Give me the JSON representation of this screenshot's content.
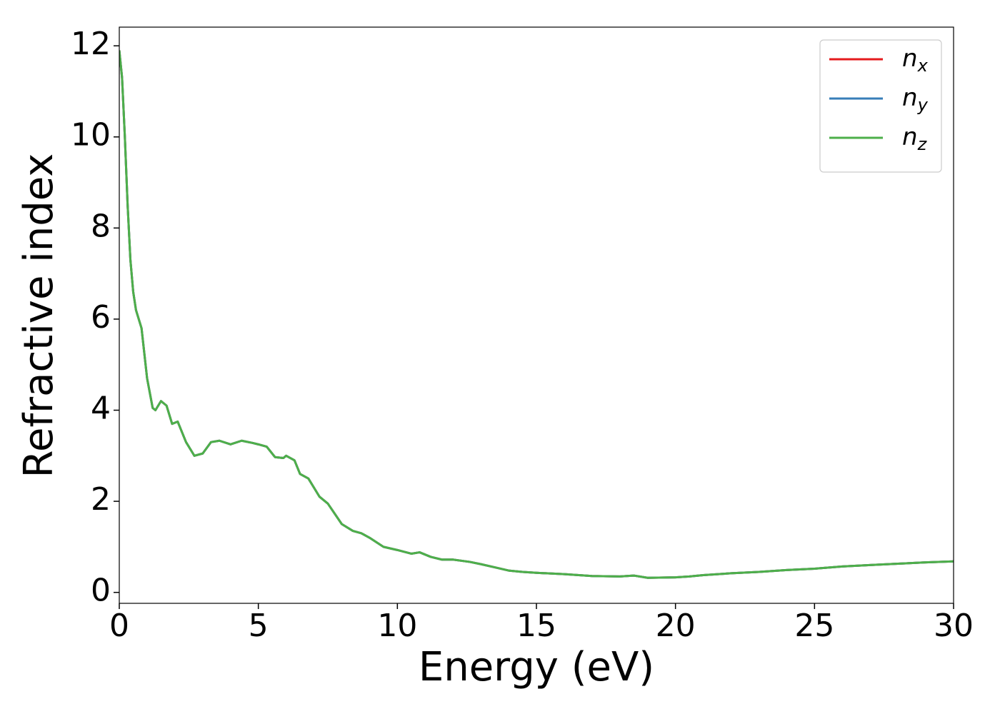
{
  "chart_data": {
    "type": "line",
    "xlabel": "Energy (eV)",
    "ylabel": "Refractive index",
    "x": [
      0,
      0.1,
      0.2,
      0.3,
      0.4,
      0.5,
      0.6,
      0.8,
      1.0,
      1.2,
      1.3,
      1.5,
      1.7,
      1.9,
      2.1,
      2.4,
      2.7,
      3.0,
      3.3,
      3.6,
      4.0,
      4.4,
      4.8,
      5.0,
      5.3,
      5.6,
      5.9,
      6.0,
      6.3,
      6.5,
      6.8,
      7.2,
      7.5,
      8.0,
      8.4,
      8.7,
      9.0,
      9.5,
      10.0,
      10.5,
      10.8,
      11.2,
      11.6,
      12.0,
      12.6,
      13.0,
      13.5,
      14.0,
      14.5,
      15.0,
      16.0,
      17.0,
      18.0,
      18.5,
      19.0,
      20.0,
      20.5,
      21.0,
      22.0,
      23.0,
      24.0,
      25.0,
      26.0,
      27.0,
      28.0,
      29.0,
      30.0
    ],
    "series": [
      {
        "name": "nx",
        "color": "#e41a1c",
        "values": [
          11.9,
          11.3,
          10.0,
          8.5,
          7.3,
          6.6,
          6.2,
          5.8,
          4.7,
          4.05,
          4.0,
          4.2,
          4.1,
          3.7,
          3.75,
          3.3,
          3.0,
          3.05,
          3.3,
          3.33,
          3.25,
          3.33,
          3.28,
          3.25,
          3.2,
          2.97,
          2.95,
          3.0,
          2.9,
          2.6,
          2.5,
          2.1,
          1.95,
          1.5,
          1.35,
          1.3,
          1.2,
          1.0,
          0.93,
          0.85,
          0.88,
          0.78,
          0.72,
          0.72,
          0.67,
          0.62,
          0.55,
          0.48,
          0.45,
          0.43,
          0.4,
          0.36,
          0.35,
          0.37,
          0.32,
          0.33,
          0.35,
          0.38,
          0.42,
          0.45,
          0.49,
          0.52,
          0.57,
          0.6,
          0.63,
          0.66,
          0.68
        ]
      },
      {
        "name": "ny",
        "color": "#377eb8",
        "values": [
          11.9,
          11.3,
          10.0,
          8.5,
          7.3,
          6.6,
          6.2,
          5.8,
          4.7,
          4.05,
          4.0,
          4.2,
          4.1,
          3.7,
          3.75,
          3.3,
          3.0,
          3.05,
          3.3,
          3.33,
          3.25,
          3.33,
          3.28,
          3.25,
          3.2,
          2.97,
          2.95,
          3.0,
          2.9,
          2.6,
          2.5,
          2.1,
          1.95,
          1.5,
          1.35,
          1.3,
          1.2,
          1.0,
          0.93,
          0.85,
          0.88,
          0.78,
          0.72,
          0.72,
          0.67,
          0.62,
          0.55,
          0.48,
          0.45,
          0.43,
          0.4,
          0.36,
          0.35,
          0.37,
          0.32,
          0.33,
          0.35,
          0.38,
          0.42,
          0.45,
          0.49,
          0.52,
          0.57,
          0.6,
          0.63,
          0.66,
          0.68
        ]
      },
      {
        "name": "nz",
        "color": "#4daf4a",
        "values": [
          11.9,
          11.3,
          10.0,
          8.5,
          7.3,
          6.6,
          6.2,
          5.8,
          4.7,
          4.05,
          4.0,
          4.2,
          4.1,
          3.7,
          3.75,
          3.3,
          3.0,
          3.05,
          3.3,
          3.33,
          3.25,
          3.33,
          3.28,
          3.25,
          3.2,
          2.97,
          2.95,
          3.0,
          2.9,
          2.6,
          2.5,
          2.1,
          1.95,
          1.5,
          1.35,
          1.3,
          1.2,
          1.0,
          0.93,
          0.85,
          0.88,
          0.78,
          0.72,
          0.72,
          0.67,
          0.62,
          0.55,
          0.48,
          0.45,
          0.43,
          0.4,
          0.36,
          0.35,
          0.37,
          0.32,
          0.33,
          0.35,
          0.38,
          0.42,
          0.45,
          0.49,
          0.52,
          0.57,
          0.6,
          0.63,
          0.66,
          0.68
        ]
      }
    ],
    "xlim": [
      0,
      30
    ],
    "xticks": [
      0,
      5,
      10,
      15,
      20,
      25,
      30
    ],
    "ylim": [
      -0.24,
      12.41
    ],
    "yticks": [
      0,
      2,
      4,
      6,
      8,
      10,
      12
    ],
    "grid": false,
    "legend": "upper right"
  }
}
